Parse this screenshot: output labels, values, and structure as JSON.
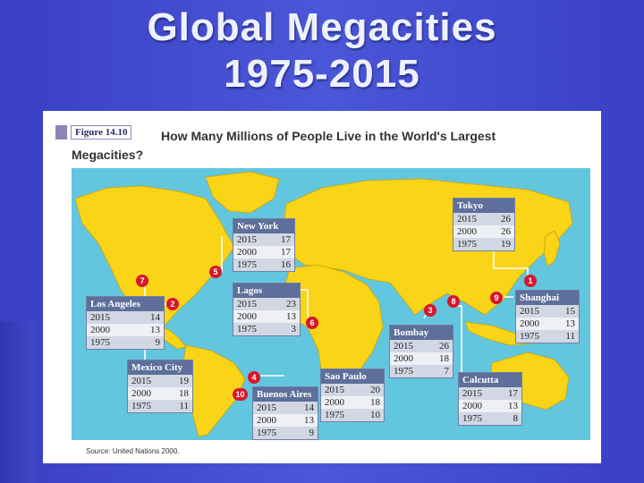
{
  "slide": {
    "title_line1": "Global Megacities",
    "title_line2": "1975-2015",
    "background": "#4350d4"
  },
  "figure": {
    "label": "Figure 14.10",
    "caption": "How Many Millions of People Live in the World's Largest Megacities?",
    "source_prefix": "Source:",
    "source_text": "United Nations 2000."
  },
  "colors": {
    "land": "#f9d417",
    "ocean": "#62c6df",
    "header": "#5d6f9a",
    "marker": "#d8162a"
  },
  "cities": [
    {
      "rank": "1",
      "name": "Tokyo",
      "rows": [
        {
          "year": "2015",
          "value": "26"
        },
        {
          "year": "2000",
          "value": "26"
        },
        {
          "year": "1975",
          "value": "19"
        }
      ]
    },
    {
      "rank": "2",
      "name": "Los Angeles",
      "rows": [
        {
          "year": "2015",
          "value": "14"
        },
        {
          "year": "2000",
          "value": "13"
        },
        {
          "year": "1975",
          "value": "9"
        }
      ]
    },
    {
      "rank": "3",
      "name": "Bombay",
      "rows": [
        {
          "year": "2015",
          "value": "26"
        },
        {
          "year": "2000",
          "value": "18"
        },
        {
          "year": "1975",
          "value": "7"
        }
      ]
    },
    {
      "rank": "4",
      "name": "Sao Paulo",
      "rows": [
        {
          "year": "2015",
          "value": "20"
        },
        {
          "year": "2000",
          "value": "18"
        },
        {
          "year": "1975",
          "value": "10"
        }
      ]
    },
    {
      "rank": "5",
      "name": "New York",
      "rows": [
        {
          "year": "2015",
          "value": "17"
        },
        {
          "year": "2000",
          "value": "17"
        },
        {
          "year": "1975",
          "value": "16"
        }
      ]
    },
    {
      "rank": "6",
      "name": "Lagos",
      "rows": [
        {
          "year": "2015",
          "value": "23"
        },
        {
          "year": "2000",
          "value": "13"
        },
        {
          "year": "1975",
          "value": "3"
        }
      ]
    },
    {
      "rank": "7",
      "name": "Mexico City",
      "rows": [
        {
          "year": "2015",
          "value": "19"
        },
        {
          "year": "2000",
          "value": "18"
        },
        {
          "year": "1975",
          "value": "11"
        }
      ]
    },
    {
      "rank": "8",
      "name": "Calcutta",
      "rows": [
        {
          "year": "2015",
          "value": "17"
        },
        {
          "year": "2000",
          "value": "13"
        },
        {
          "year": "1975",
          "value": "8"
        }
      ]
    },
    {
      "rank": "9",
      "name": "Shanghai",
      "rows": [
        {
          "year": "2015",
          "value": "15"
        },
        {
          "year": "2000",
          "value": "13"
        },
        {
          "year": "1975",
          "value": "11"
        }
      ]
    },
    {
      "rank": "10",
      "name": "Buenos Aires",
      "rows": [
        {
          "year": "2015",
          "value": "14"
        },
        {
          "year": "2000",
          "value": "13"
        },
        {
          "year": "1975",
          "value": "9"
        }
      ]
    }
  ]
}
